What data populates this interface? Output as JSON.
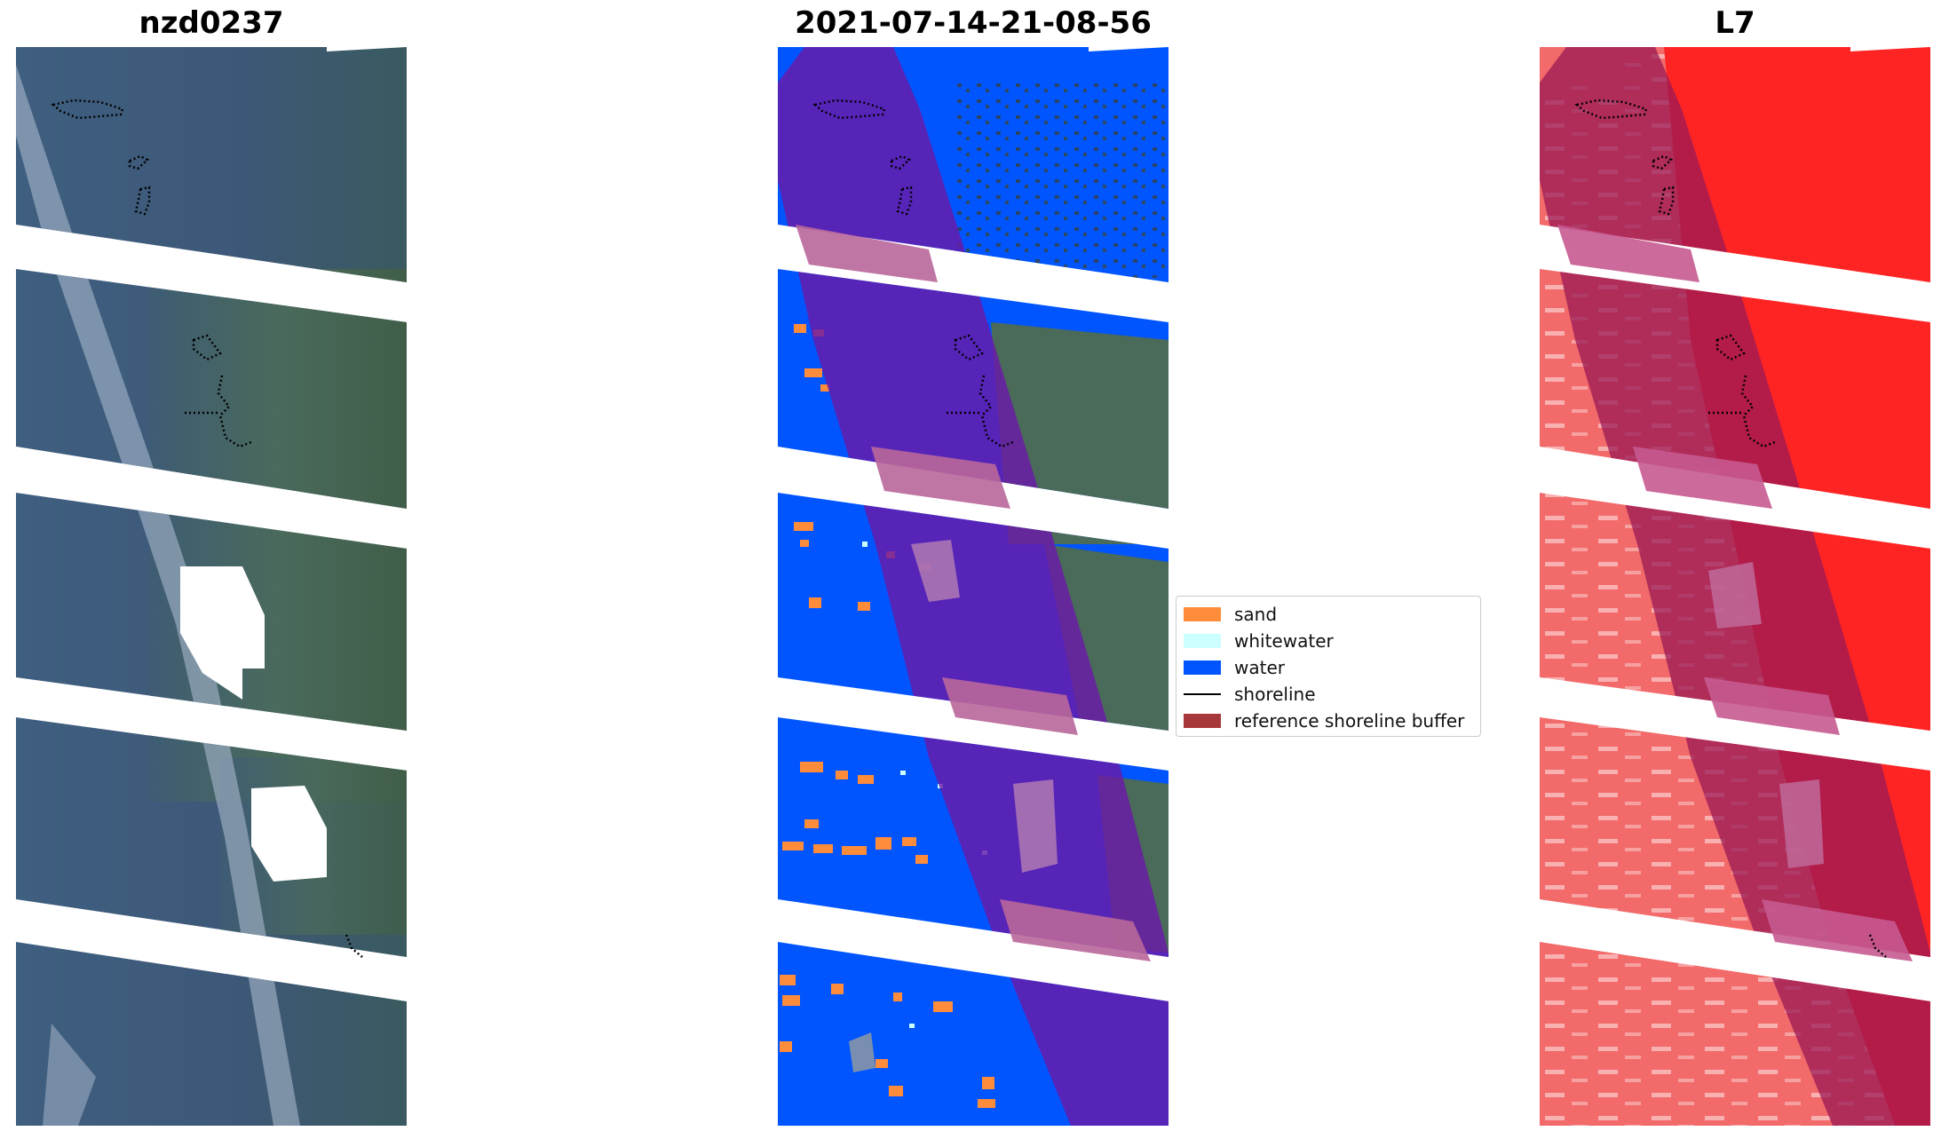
{
  "panels": [
    {
      "title": "nzd0237"
    },
    {
      "title": "2021-07-14-21-08-56"
    },
    {
      "title": "L7"
    }
  ],
  "legend": {
    "items": [
      {
        "label": "sand",
        "color": "#ff8c3a"
      },
      {
        "label": "whitewater",
        "color": "#ccffff"
      },
      {
        "label": "water",
        "color": "#0055ff"
      },
      {
        "label": "shoreline",
        "color": "#000000"
      },
      {
        "label": "reference shoreline buffer",
        "color": "#a8373a"
      }
    ]
  },
  "colors": {
    "water_dark": "#3d5a7a",
    "land": "#4f6e58",
    "class_water": "#0055ff",
    "class_sand": "#ff8c3a",
    "buffer_overlay": "#6a1aa8",
    "ndwi_red": "#ff2a2a",
    "ndwi_pale": "#f27a7a"
  }
}
